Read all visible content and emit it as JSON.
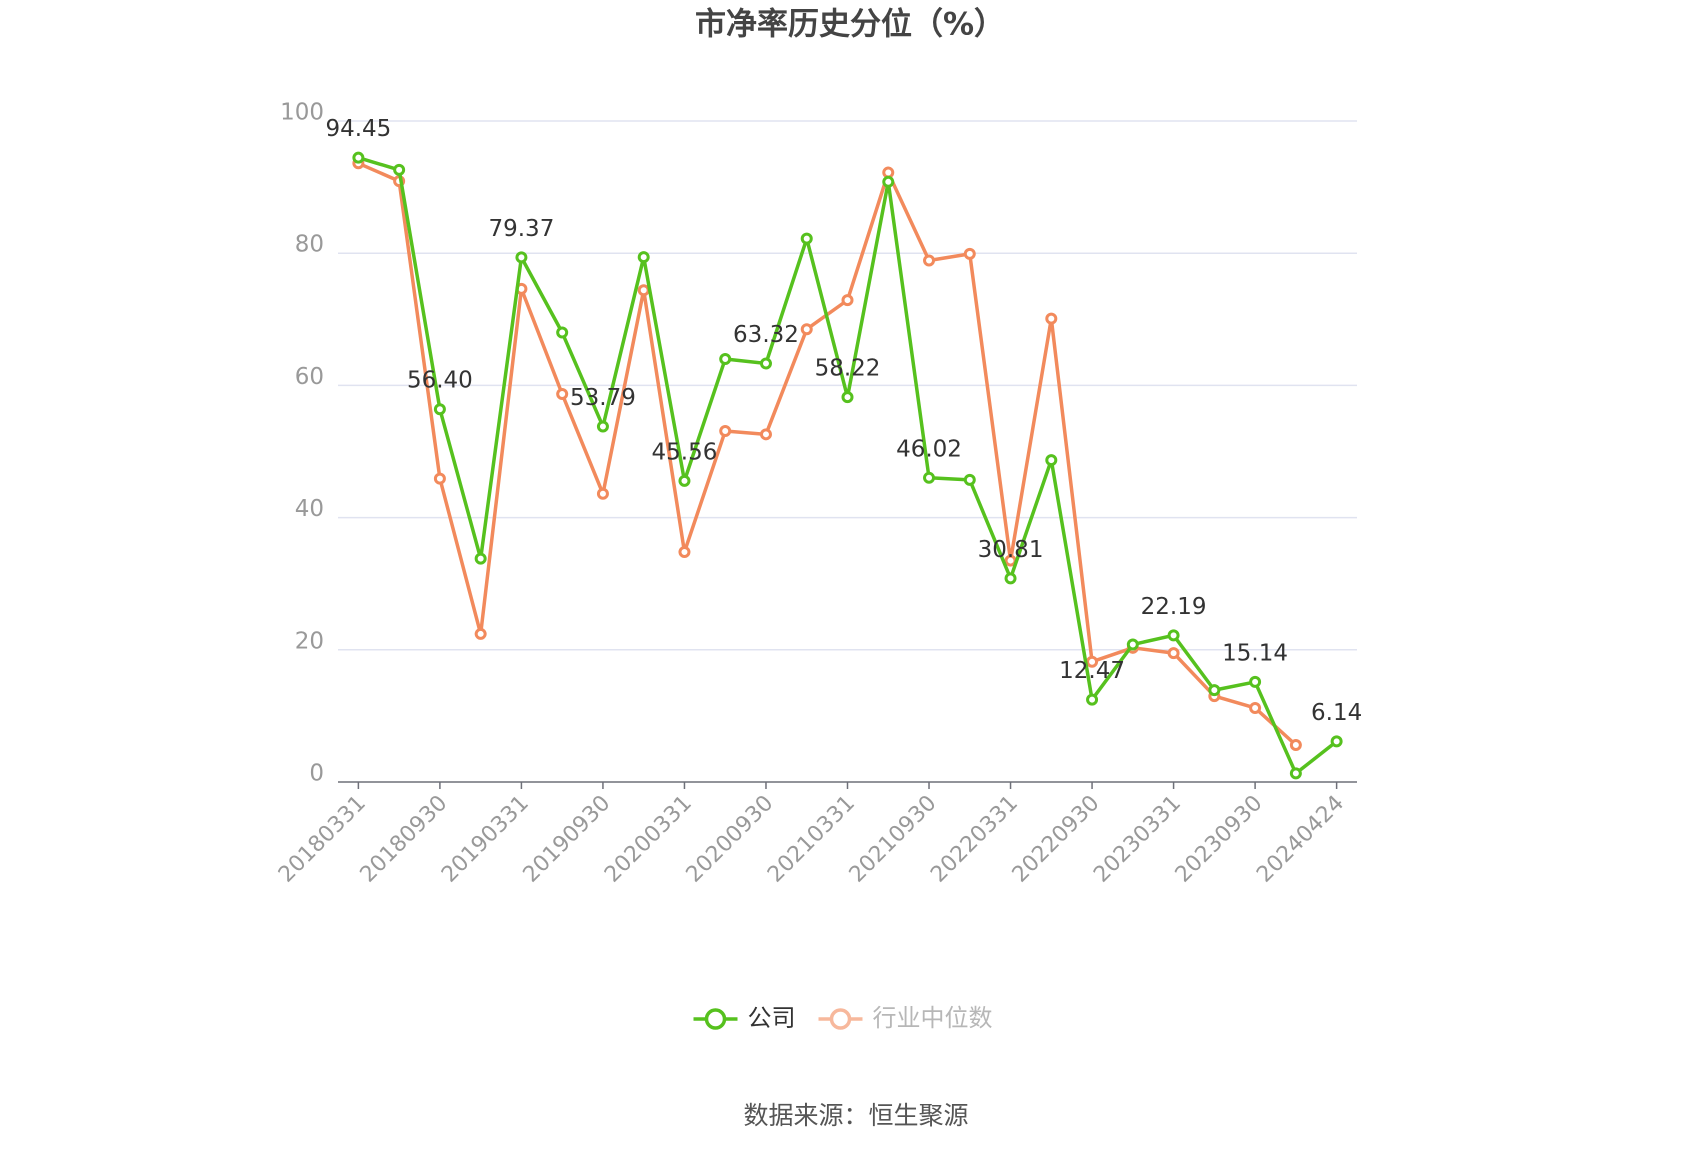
{
  "chart_data": {
    "type": "line",
    "title": "市净率历史分位（%）",
    "source": "数据来源：恒生聚源",
    "categories": [
      "20180331",
      null,
      "20180930",
      null,
      "20190331",
      null,
      "20190930",
      null,
      "20200331",
      null,
      "20200930",
      null,
      "20210331",
      null,
      "20210930",
      null,
      "20220331",
      null,
      "20220930",
      null,
      "20230331",
      null,
      "20230930",
      null,
      "20240424"
    ],
    "series": [
      {
        "name": "公司",
        "color": "#56c11e",
        "values": [
          94.45,
          92.6,
          56.4,
          33.8,
          79.37,
          68.0,
          53.79,
          79.4,
          45.56,
          64.0,
          63.32,
          82.2,
          58.22,
          90.8,
          46.02,
          45.7,
          30.81,
          48.7,
          12.47,
          20.8,
          22.19,
          13.9,
          15.14,
          1.3,
          6.14
        ],
        "value_labels": [
          "94.45",
          null,
          "56.40",
          null,
          "79.37",
          null,
          "53.79",
          null,
          "45.56",
          null,
          "63.32",
          null,
          "58.22",
          null,
          "46.02",
          null,
          "30.81",
          null,
          "12.47",
          null,
          "22.19",
          null,
          "15.14",
          null,
          "6.14"
        ]
      },
      {
        "name": "行业中位数",
        "color": "#f28a5c",
        "values": [
          93.6,
          90.9,
          45.9,
          22.4,
          74.6,
          58.7,
          43.6,
          74.4,
          34.8,
          53.1,
          52.6,
          68.5,
          72.9,
          92.2,
          78.9,
          79.9,
          33.5,
          70.1,
          18.2,
          20.3,
          19.5,
          13.0,
          11.2,
          5.6,
          null
        ]
      }
    ],
    "ylim": [
      0,
      100
    ],
    "yticks": [
      0,
      20,
      40,
      60,
      80,
      100
    ],
    "grid": true
  }
}
